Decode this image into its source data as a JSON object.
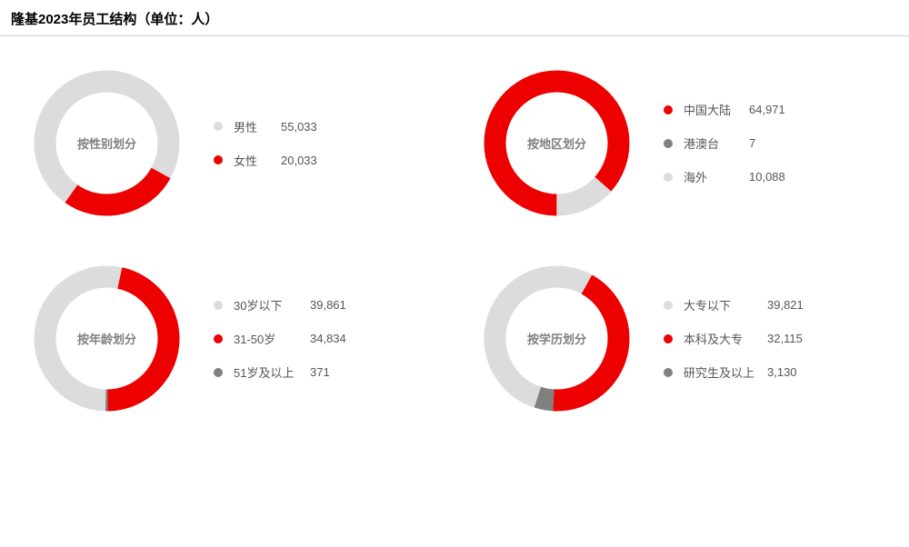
{
  "title": "隆基2023年员工结构（单位：人）",
  "colors": {
    "grey": "#dcdcdc",
    "red": "#ed0000",
    "dark": "#808080",
    "text_grey": "#808080",
    "divider": "#cccccc",
    "background": "#ffffff"
  },
  "donut": {
    "size": 175,
    "outer_r": 80,
    "stroke_w": 24
  },
  "panels": [
    {
      "center_label": "按性别划分",
      "start_angle_deg": 215,
      "slices": [
        {
          "label": "男性",
          "value": 55033,
          "value_str": "55,033",
          "color": "#dcdcdc"
        },
        {
          "label": "女性",
          "value": 20033,
          "value_str": "20,033",
          "color": "#ed0000"
        }
      ],
      "label_min_width": 40
    },
    {
      "center_label": "按地区划分",
      "start_angle_deg": 180,
      "slices": [
        {
          "label": "中国大陆",
          "value": 64971,
          "value_str": "64,971",
          "color": "#ed0000"
        },
        {
          "label": "港澳台",
          "value": 7,
          "value_str": "7",
          "color": "#808080"
        },
        {
          "label": "海外",
          "value": 10088,
          "value_str": "10,088",
          "color": "#dcdcdc"
        }
      ],
      "label_min_width": 60
    },
    {
      "center_label": "按年龄划分",
      "start_angle_deg": 181,
      "slices": [
        {
          "label": "30岁以下",
          "value": 39861,
          "value_str": "39,861",
          "color": "#dcdcdc"
        },
        {
          "label": "31-50岁",
          "value": 34834,
          "value_str": "34,834",
          "color": "#ed0000"
        },
        {
          "label": "51岁及以上",
          "value": 371,
          "value_str": "371",
          "color": "#808080"
        }
      ],
      "label_min_width": 72
    },
    {
      "center_label": "按学历划分",
      "start_angle_deg": 198,
      "slices": [
        {
          "label": "大专以下",
          "value": 39821,
          "value_str": "39,821",
          "color": "#dcdcdc"
        },
        {
          "label": "本科及大专",
          "value": 32115,
          "value_str": "32,115",
          "color": "#ed0000"
        },
        {
          "label": "研究生及以上",
          "value": 3130,
          "value_str": "3,130",
          "color": "#808080"
        }
      ],
      "label_min_width": 80
    }
  ]
}
